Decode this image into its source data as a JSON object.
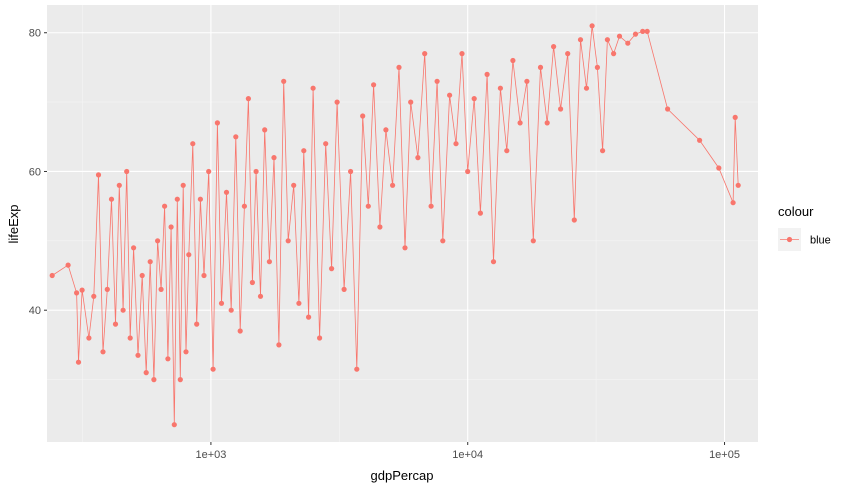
{
  "chart_data": {
    "type": "line",
    "xlabel": "gdpPercap",
    "ylabel": "lifeExp",
    "x_scale": "log10",
    "xlim": [
      230,
      135000
    ],
    "ylim": [
      21,
      84
    ],
    "x_ticks": [
      {
        "value": 1000,
        "label": "1e+03"
      },
      {
        "value": 10000,
        "label": "1e+04"
      },
      {
        "value": 100000,
        "label": "1e+05"
      }
    ],
    "y_ticks": [
      {
        "value": 40,
        "label": "40"
      },
      {
        "value": 60,
        "label": "60"
      },
      {
        "value": 80,
        "label": "80"
      }
    ],
    "grid": true,
    "legend": {
      "title": "colour",
      "entries": [
        "blue"
      ],
      "position": "right"
    },
    "series": [
      {
        "name": "blue",
        "color": "#F8766D",
        "marker": "circle",
        "points": [
          [
            241,
            45
          ],
          [
            278,
            46.5
          ],
          [
            300,
            42.5
          ],
          [
            305,
            32.5
          ],
          [
            315,
            42.9
          ],
          [
            335,
            36
          ],
          [
            350,
            42
          ],
          [
            365,
            59.5
          ],
          [
            380,
            34
          ],
          [
            395,
            43
          ],
          [
            410,
            56
          ],
          [
            425,
            38
          ],
          [
            440,
            58
          ],
          [
            455,
            40
          ],
          [
            470,
            60
          ],
          [
            485,
            36
          ],
          [
            500,
            49
          ],
          [
            520,
            33.5
          ],
          [
            540,
            45
          ],
          [
            560,
            31
          ],
          [
            580,
            47
          ],
          [
            600,
            30
          ],
          [
            620,
            50
          ],
          [
            640,
            43
          ],
          [
            660,
            55
          ],
          [
            680,
            33
          ],
          [
            700,
            52
          ],
          [
            720,
            23.5
          ],
          [
            740,
            56
          ],
          [
            760,
            30
          ],
          [
            780,
            58
          ],
          [
            800,
            34
          ],
          [
            820,
            48
          ],
          [
            850,
            64
          ],
          [
            880,
            38
          ],
          [
            910,
            56
          ],
          [
            940,
            45
          ],
          [
            980,
            60
          ],
          [
            1020,
            31.5
          ],
          [
            1060,
            67
          ],
          [
            1100,
            41
          ],
          [
            1150,
            57
          ],
          [
            1200,
            40
          ],
          [
            1250,
            65
          ],
          [
            1300,
            37
          ],
          [
            1350,
            55
          ],
          [
            1400,
            70.5
          ],
          [
            1450,
            44
          ],
          [
            1500,
            60
          ],
          [
            1560,
            42
          ],
          [
            1620,
            66
          ],
          [
            1690,
            47
          ],
          [
            1760,
            62
          ],
          [
            1840,
            35
          ],
          [
            1920,
            73
          ],
          [
            2000,
            50
          ],
          [
            2100,
            58
          ],
          [
            2200,
            41
          ],
          [
            2300,
            63
          ],
          [
            2400,
            39
          ],
          [
            2500,
            72
          ],
          [
            2650,
            36
          ],
          [
            2800,
            64
          ],
          [
            2950,
            46
          ],
          [
            3100,
            70
          ],
          [
            3300,
            43
          ],
          [
            3500,
            60
          ],
          [
            3700,
            31.5
          ],
          [
            3900,
            68
          ],
          [
            4100,
            55
          ],
          [
            4300,
            72.5
          ],
          [
            4550,
            52
          ],
          [
            4800,
            66
          ],
          [
            5100,
            58
          ],
          [
            5400,
            75
          ],
          [
            5700,
            49
          ],
          [
            6000,
            70
          ],
          [
            6400,
            62
          ],
          [
            6800,
            77
          ],
          [
            7200,
            55
          ],
          [
            7600,
            73
          ],
          [
            8000,
            50
          ],
          [
            8500,
            71
          ],
          [
            9000,
            64
          ],
          [
            9500,
            77
          ],
          [
            10000,
            60
          ],
          [
            10600,
            70.5
          ],
          [
            11200,
            54
          ],
          [
            11900,
            74
          ],
          [
            12600,
            47
          ],
          [
            13400,
            72
          ],
          [
            14200,
            63
          ],
          [
            15000,
            76
          ],
          [
            16000,
            67
          ],
          [
            17000,
            73
          ],
          [
            18000,
            50
          ],
          [
            19200,
            75
          ],
          [
            20400,
            67
          ],
          [
            21600,
            78
          ],
          [
            23000,
            69
          ],
          [
            24500,
            77
          ],
          [
            26000,
            53
          ],
          [
            27500,
            79
          ],
          [
            29000,
            72
          ],
          [
            30500,
            81
          ],
          [
            32000,
            75
          ],
          [
            33500,
            63
          ],
          [
            35000,
            79
          ],
          [
            37000,
            77
          ],
          [
            39000,
            79.5
          ],
          [
            42000,
            78.5
          ],
          [
            45000,
            79.8
          ],
          [
            48000,
            80.2
          ],
          [
            50000,
            80.2
          ],
          [
            60000,
            69
          ],
          [
            80000,
            64.5
          ],
          [
            95000,
            60.5
          ],
          [
            108000,
            55.5
          ],
          [
            110000,
            67.8
          ],
          [
            113000,
            58
          ]
        ]
      }
    ]
  }
}
